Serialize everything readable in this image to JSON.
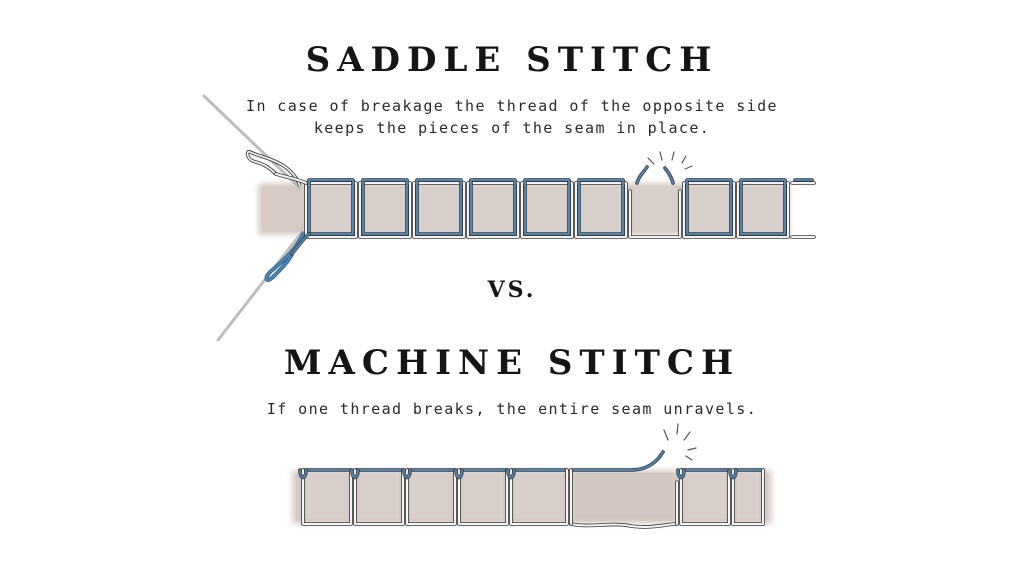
{
  "saddle": {
    "title": "SADDLE STITCH",
    "caption_line1": "In case of breakage the thread of the opposite side",
    "caption_line2": "keeps the pieces of the seam in place."
  },
  "vs_label": "VS.",
  "machine": {
    "title": "MACHINE STITCH",
    "caption": "If one thread breaks, the entire seam unravels."
  },
  "colors": {
    "leather": "#d8ccc6",
    "thread_blue": "#4a86b5",
    "thread_white": "#f4f4f4",
    "thread_outline": "#3b3b3b",
    "needle": "#bfbfbf"
  }
}
